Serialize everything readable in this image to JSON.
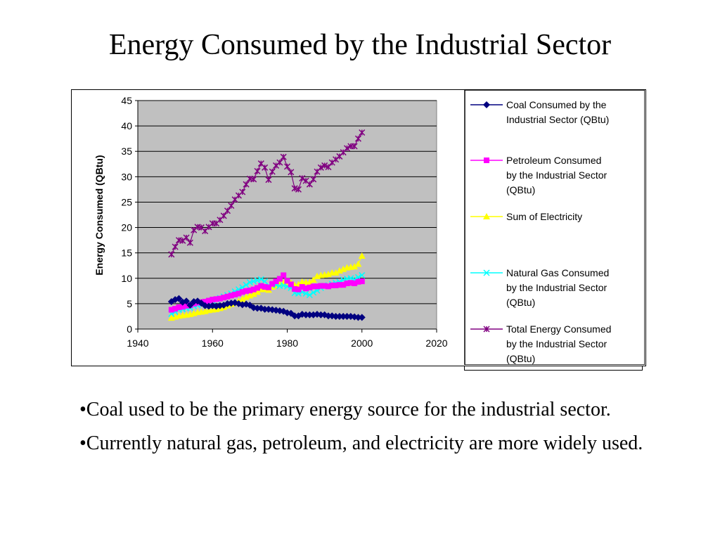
{
  "slide": {
    "title": "Energy Consumed by the Industrial Sector",
    "bullets": [
      "•Coal used to be the primary energy source for the industrial sector.",
      "•Currently natural gas, petroleum, and electricity are more widely used."
    ]
  },
  "chart_data": {
    "type": "line",
    "title": "",
    "xlabel": "",
    "ylabel": "Energy Consumed (QBtu)",
    "xlim": [
      1940,
      2020
    ],
    "ylim": [
      0,
      45
    ],
    "xticks": [
      1940,
      1960,
      1980,
      2000,
      2020
    ],
    "yticks": [
      0,
      5,
      10,
      15,
      20,
      25,
      30,
      35,
      40,
      45
    ],
    "grid": "horizontal",
    "plot_background": "#c0c0c0",
    "legend_position": "right",
    "x": [
      1949,
      1950,
      1951,
      1952,
      1953,
      1954,
      1955,
      1956,
      1957,
      1958,
      1959,
      1960,
      1961,
      1962,
      1963,
      1964,
      1965,
      1966,
      1967,
      1968,
      1969,
      1970,
      1971,
      1972,
      1973,
      1974,
      1975,
      1976,
      1977,
      1978,
      1979,
      1980,
      1981,
      1982,
      1983,
      1984,
      1985,
      1986,
      1987,
      1988,
      1989,
      1990,
      1991,
      1992,
      1993,
      1994,
      1995,
      1996,
      1997,
      1998,
      1999,
      2000
    ],
    "series": [
      {
        "name": "Coal Consumed by the Industrial Sector (QBtu)",
        "color": "#000080",
        "marker": "diamond",
        "values": [
          5.4,
          5.8,
          6.0,
          5.3,
          5.5,
          4.7,
          5.4,
          5.5,
          5.1,
          4.6,
          4.5,
          4.6,
          4.5,
          4.6,
          4.7,
          5.0,
          5.1,
          5.2,
          5.0,
          4.8,
          4.9,
          4.7,
          4.2,
          4.1,
          4.1,
          3.9,
          3.9,
          3.8,
          3.7,
          3.6,
          3.5,
          3.2,
          3.1,
          2.6,
          2.6,
          2.9,
          2.8,
          2.8,
          2.8,
          2.9,
          2.8,
          2.8,
          2.6,
          2.6,
          2.5,
          2.5,
          2.5,
          2.5,
          2.5,
          2.4,
          2.3,
          2.3
        ]
      },
      {
        "name": "Petroleum Consumed by the Industrial Sector (QBtu)",
        "color": "#ff00ff",
        "marker": "square",
        "values": [
          3.8,
          4.0,
          4.3,
          4.4,
          4.6,
          4.7,
          5.0,
          5.2,
          5.3,
          5.4,
          5.6,
          5.8,
          5.9,
          6.0,
          6.2,
          6.4,
          6.6,
          6.8,
          7.0,
          7.3,
          7.5,
          7.6,
          7.8,
          8.1,
          8.5,
          8.3,
          8.2,
          8.9,
          9.4,
          9.9,
          10.6,
          9.5,
          8.8,
          7.9,
          7.8,
          8.3,
          8.0,
          8.2,
          8.4,
          8.4,
          8.5,
          8.5,
          8.4,
          8.6,
          8.6,
          8.7,
          8.7,
          9.0,
          9.1,
          9.0,
          9.3,
          9.4
        ]
      },
      {
        "name": "Sum of Electricity",
        "color": "#ffff00",
        "marker": "triangle",
        "values": [
          2.2,
          2.4,
          2.6,
          2.7,
          2.8,
          2.9,
          3.1,
          3.3,
          3.4,
          3.5,
          3.7,
          3.8,
          3.9,
          4.1,
          4.3,
          4.6,
          4.9,
          5.2,
          5.5,
          5.9,
          6.3,
          6.6,
          6.9,
          7.3,
          7.8,
          7.9,
          7.7,
          8.3,
          8.6,
          8.9,
          9.1,
          9.0,
          9.1,
          8.6,
          8.8,
          9.3,
          9.2,
          9.2,
          9.7,
          10.4,
          10.6,
          10.7,
          10.8,
          11.1,
          11.1,
          11.5,
          11.8,
          12.1,
          12.2,
          12.3,
          12.8,
          14.4
        ]
      },
      {
        "name": "Natural Gas Consumed by the Industrial Sector (QBtu)",
        "color": "#00ffff",
        "marker": "x",
        "values": [
          3.0,
          3.4,
          3.8,
          3.9,
          4.1,
          4.2,
          4.5,
          4.7,
          4.9,
          5.0,
          5.3,
          5.6,
          5.8,
          6.1,
          6.4,
          6.7,
          7.0,
          7.4,
          7.8,
          8.2,
          8.7,
          9.2,
          9.4,
          9.6,
          9.8,
          9.4,
          8.6,
          8.7,
          8.7,
          8.5,
          8.6,
          8.4,
          8.1,
          7.1,
          7.0,
          7.3,
          7.0,
          6.7,
          7.2,
          7.6,
          8.1,
          8.5,
          8.6,
          8.9,
          9.1,
          9.3,
          9.7,
          9.9,
          10.0,
          9.8,
          10.2,
          10.6
        ]
      },
      {
        "name": "Total Energy Consumed by the Industrial Sector (QBtu)",
        "color": "#800080",
        "marker": "star",
        "values": [
          14.7,
          16.2,
          17.5,
          17.4,
          18.0,
          17.0,
          19.5,
          20.1,
          20.0,
          19.3,
          20.1,
          20.8,
          20.8,
          21.5,
          22.3,
          23.3,
          24.3,
          25.5,
          26.3,
          27.0,
          28.5,
          29.6,
          29.5,
          31.1,
          32.6,
          31.8,
          29.4,
          31.0,
          32.2,
          32.8,
          33.9,
          32.0,
          30.9,
          27.7,
          27.5,
          29.7,
          29.2,
          28.5,
          29.5,
          31.0,
          31.8,
          32.2,
          31.9,
          32.8,
          33.4,
          34.0,
          34.8,
          35.6,
          36.0,
          36.0,
          37.5,
          38.7
        ]
      }
    ]
  }
}
